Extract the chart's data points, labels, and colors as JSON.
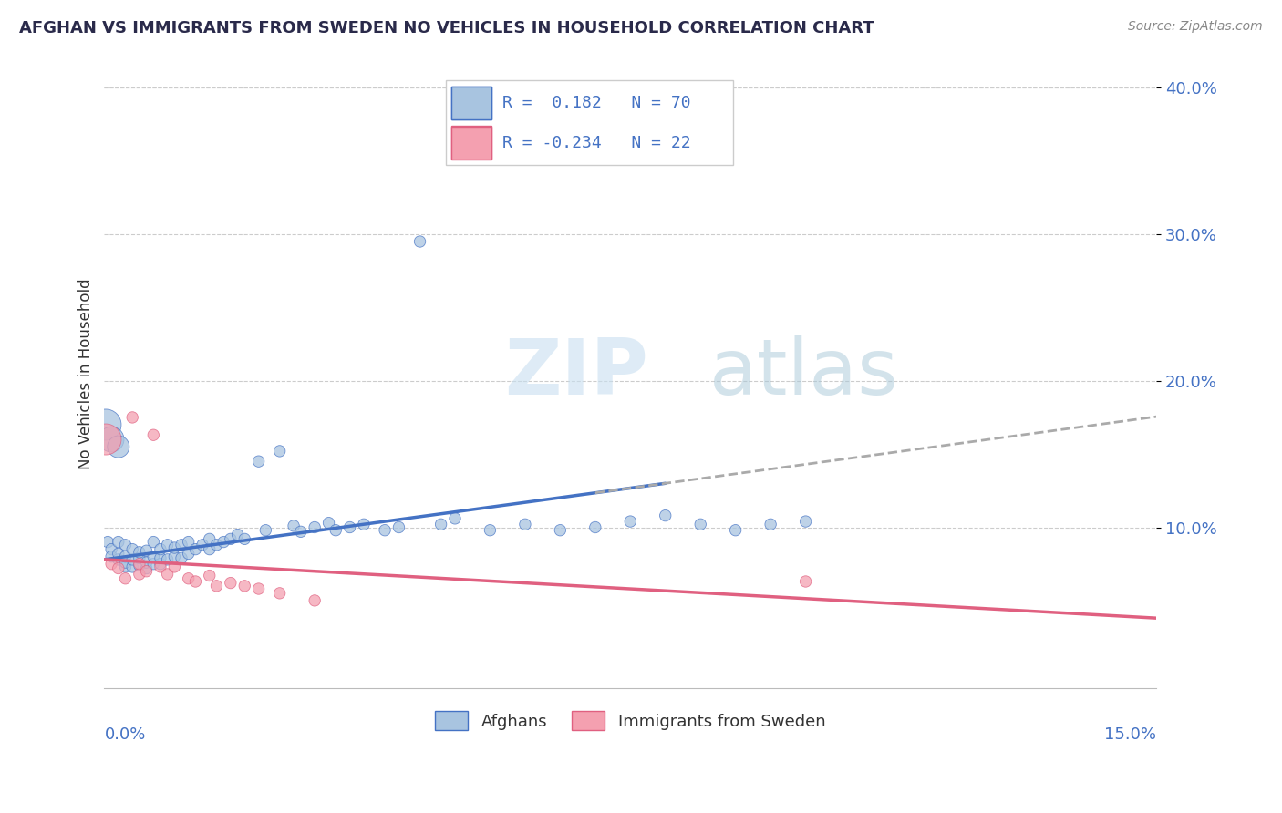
{
  "title": "AFGHAN VS IMMIGRANTS FROM SWEDEN NO VEHICLES IN HOUSEHOLD CORRELATION CHART",
  "source": "Source: ZipAtlas.com",
  "ylabel": "No Vehicles in Household",
  "watermark_zip": "ZIP",
  "watermark_atlas": "atlas",
  "bottom_legend": [
    "Afghans",
    "Immigrants from Sweden"
  ],
  "afghan_color": "#a8c4e0",
  "swedish_color": "#f4a0b0",
  "afghan_line_color": "#4472c4",
  "swedish_line_color": "#e06080",
  "trend_line_color": "#aaaaaa",
  "xlim": [
    0.0,
    0.15
  ],
  "ylim": [
    -0.01,
    0.42
  ],
  "yticks": [
    0.1,
    0.2,
    0.3,
    0.4
  ],
  "ytick_labels": [
    "10.0%",
    "20.0%",
    "30.0%",
    "40.0%"
  ],
  "afghan_r": " 0.182",
  "afghan_n": "70",
  "swedish_r": "-0.234",
  "swedish_n": "22",
  "afghan_x": [
    0.0005,
    0.001,
    0.001,
    0.002,
    0.002,
    0.002,
    0.003,
    0.003,
    0.003,
    0.003,
    0.004,
    0.004,
    0.004,
    0.005,
    0.005,
    0.005,
    0.006,
    0.006,
    0.006,
    0.007,
    0.007,
    0.007,
    0.008,
    0.008,
    0.008,
    0.009,
    0.009,
    0.01,
    0.01,
    0.011,
    0.011,
    0.012,
    0.012,
    0.013,
    0.014,
    0.015,
    0.015,
    0.016,
    0.017,
    0.018,
    0.019,
    0.02,
    0.022,
    0.023,
    0.025,
    0.027,
    0.028,
    0.03,
    0.032,
    0.033,
    0.035,
    0.037,
    0.04,
    0.042,
    0.045,
    0.048,
    0.05,
    0.055,
    0.06,
    0.065,
    0.07,
    0.075,
    0.08,
    0.085,
    0.09,
    0.095,
    0.1,
    0.0002,
    0.001,
    0.002
  ],
  "afghan_y": [
    0.09,
    0.085,
    0.08,
    0.078,
    0.082,
    0.09,
    0.073,
    0.076,
    0.08,
    0.088,
    0.073,
    0.078,
    0.085,
    0.074,
    0.079,
    0.083,
    0.072,
    0.076,
    0.084,
    0.075,
    0.08,
    0.09,
    0.075,
    0.079,
    0.085,
    0.078,
    0.088,
    0.08,
    0.086,
    0.079,
    0.088,
    0.082,
    0.09,
    0.085,
    0.088,
    0.085,
    0.092,
    0.088,
    0.09,
    0.092,
    0.095,
    0.092,
    0.145,
    0.098,
    0.152,
    0.101,
    0.097,
    0.1,
    0.103,
    0.098,
    0.1,
    0.102,
    0.098,
    0.1,
    0.295,
    0.102,
    0.106,
    0.098,
    0.102,
    0.098,
    0.1,
    0.104,
    0.108,
    0.102,
    0.098,
    0.102,
    0.104,
    0.17,
    0.16,
    0.155
  ],
  "afghan_size": [
    80,
    80,
    80,
    80,
    80,
    80,
    80,
    80,
    80,
    80,
    80,
    80,
    80,
    80,
    80,
    80,
    80,
    80,
    80,
    80,
    80,
    80,
    80,
    80,
    80,
    80,
    80,
    80,
    80,
    80,
    80,
    80,
    80,
    80,
    80,
    80,
    80,
    80,
    80,
    80,
    80,
    80,
    80,
    80,
    80,
    80,
    80,
    80,
    80,
    80,
    80,
    80,
    80,
    80,
    80,
    80,
    80,
    80,
    80,
    80,
    80,
    80,
    80,
    80,
    80,
    80,
    80,
    600,
    400,
    300
  ],
  "swedish_x": [
    0.0002,
    0.001,
    0.002,
    0.003,
    0.004,
    0.005,
    0.005,
    0.006,
    0.007,
    0.008,
    0.009,
    0.01,
    0.012,
    0.013,
    0.015,
    0.016,
    0.018,
    0.02,
    0.022,
    0.025,
    0.1,
    0.03
  ],
  "swedish_y": [
    0.16,
    0.075,
    0.072,
    0.065,
    0.175,
    0.068,
    0.075,
    0.07,
    0.163,
    0.073,
    0.068,
    0.073,
    0.065,
    0.063,
    0.067,
    0.06,
    0.062,
    0.06,
    0.058,
    0.055,
    0.063,
    0.05
  ],
  "swedish_size": [
    600,
    80,
    80,
    80,
    80,
    80,
    80,
    80,
    80,
    80,
    80,
    80,
    80,
    80,
    80,
    80,
    80,
    80,
    80,
    80,
    80,
    80
  ]
}
